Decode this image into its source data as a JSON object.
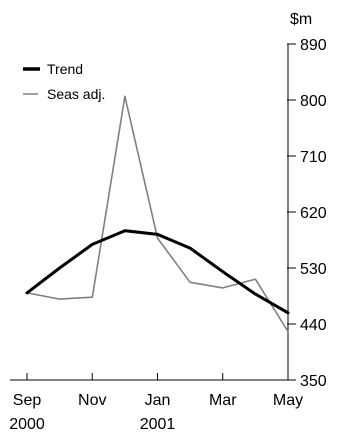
{
  "chart_data": {
    "type": "line",
    "title": "",
    "xlabel": "",
    "ylabel": "$m",
    "ylim": [
      350,
      890
    ],
    "y_ticks": [
      350,
      440,
      530,
      620,
      710,
      800,
      890
    ],
    "y_axis_side": "right",
    "x_ticks": [
      {
        "label": "Sep",
        "year": "2000",
        "index": 0
      },
      {
        "label": "Nov",
        "year": "",
        "index": 2
      },
      {
        "label": "Jan",
        "year": "2001",
        "index": 4
      },
      {
        "label": "Mar",
        "year": "",
        "index": 6
      },
      {
        "label": "May",
        "year": "",
        "index": 8
      }
    ],
    "categories": [
      "Sep 2000",
      "Oct 2000",
      "Nov 2000",
      "Dec 2000",
      "Jan 2001",
      "Feb 2001",
      "Mar 2001",
      "Apr 2001",
      "May 2001"
    ],
    "series": [
      {
        "name": "Trend",
        "color": "#000000",
        "values": [
          490,
          530,
          568,
          590,
          584,
          562,
          524,
          488,
          458
        ]
      },
      {
        "name": "Seas adj.",
        "color": "#808080",
        "values": [
          490,
          480,
          483,
          806,
          578,
          507,
          498,
          512,
          428
        ]
      }
    ],
    "legend": {
      "position": "top-left"
    },
    "grid": false
  }
}
